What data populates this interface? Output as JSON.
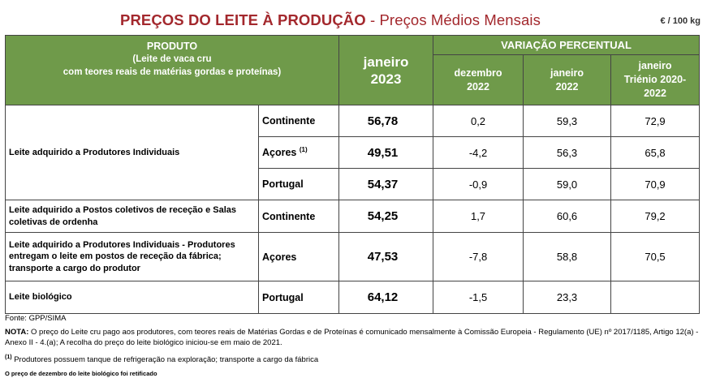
{
  "title": {
    "main": "PREÇOS DO LEITE À PRODUÇÃO",
    "sub": " - Preços Médios Mensais",
    "unit": "€ / 100 kg"
  },
  "header": {
    "produto_label": "PRODUTO",
    "produto_sub1": "(Leite de vaca cru",
    "produto_sub2": "com teores reais de matérias gordas e proteínas)",
    "current_month": "janeiro",
    "current_year": "2023",
    "variacao": "VARIAÇÃO PERCENTUAL",
    "var_cols": [
      {
        "line1": "dezembro",
        "line2": "2022"
      },
      {
        "line1": "janeiro",
        "line2": "2022"
      },
      {
        "line1": "janeiro",
        "line2": "Triénio 2020-",
        "line3": "2022"
      }
    ]
  },
  "rows": [
    {
      "label": "Leite adquirido a Produtores Individuais",
      "region": "Continente",
      "sup": "",
      "price": "56,78",
      "dez": "0,2",
      "jan": "59,3",
      "trienio": "72,9"
    },
    {
      "label": "",
      "region": "Açores",
      "sup": "(1)",
      "price": "49,51",
      "dez": "-4,2",
      "jan": "56,3",
      "trienio": "65,8"
    },
    {
      "label": "",
      "region": "Portugal",
      "sup": "",
      "price": "54,37",
      "dez": "-0,9",
      "jan": "59,0",
      "trienio": "70,9"
    },
    {
      "label": "Leite adquirido a Postos coletivos de receção e Salas coletivas de ordenha",
      "region": "Continente",
      "sup": "",
      "price": "54,25",
      "dez": "1,7",
      "jan": "60,6",
      "trienio": "79,2"
    },
    {
      "label": "Leite adquirido a Produtores Individuais - Produtores entregam o leite em postos de receção da fábrica; transporte a cargo do produtor",
      "region": "Açores",
      "sup": "",
      "price": "47,53",
      "dez": "-7,8",
      "jan": "58,8",
      "trienio": "70,5"
    },
    {
      "label": "Leite biológico",
      "region": "Portugal",
      "sup": "",
      "price": "64,12",
      "dez": "-1,5",
      "jan": "23,3",
      "trienio": ""
    }
  ],
  "notes": {
    "fonte": "Fonte: GPP/SIMA",
    "nota_label": "NOTA:",
    "nota_text": " O preço do Leite cru pago aos produtores, com teores reais de Matérias Gordas e de Proteínas é comunicado mensalmente à Comissão Europeia - Regulamento (UE) nº 2017/1185, Artigo 12(a) - Anexo II - 4.(a); A recolha do preço do leite biológico iniciou-se em maio de 2021.",
    "footnote_mark": "(1)",
    "footnote_text": " Produtores possuem tanque de refrigeração na exploração; transporte a cargo da fábrica",
    "retificado": "O preço de dezembro do leite biológico foi retificado"
  },
  "colors": {
    "title": "#a3282d",
    "header_bg": "#6f9a4a"
  }
}
